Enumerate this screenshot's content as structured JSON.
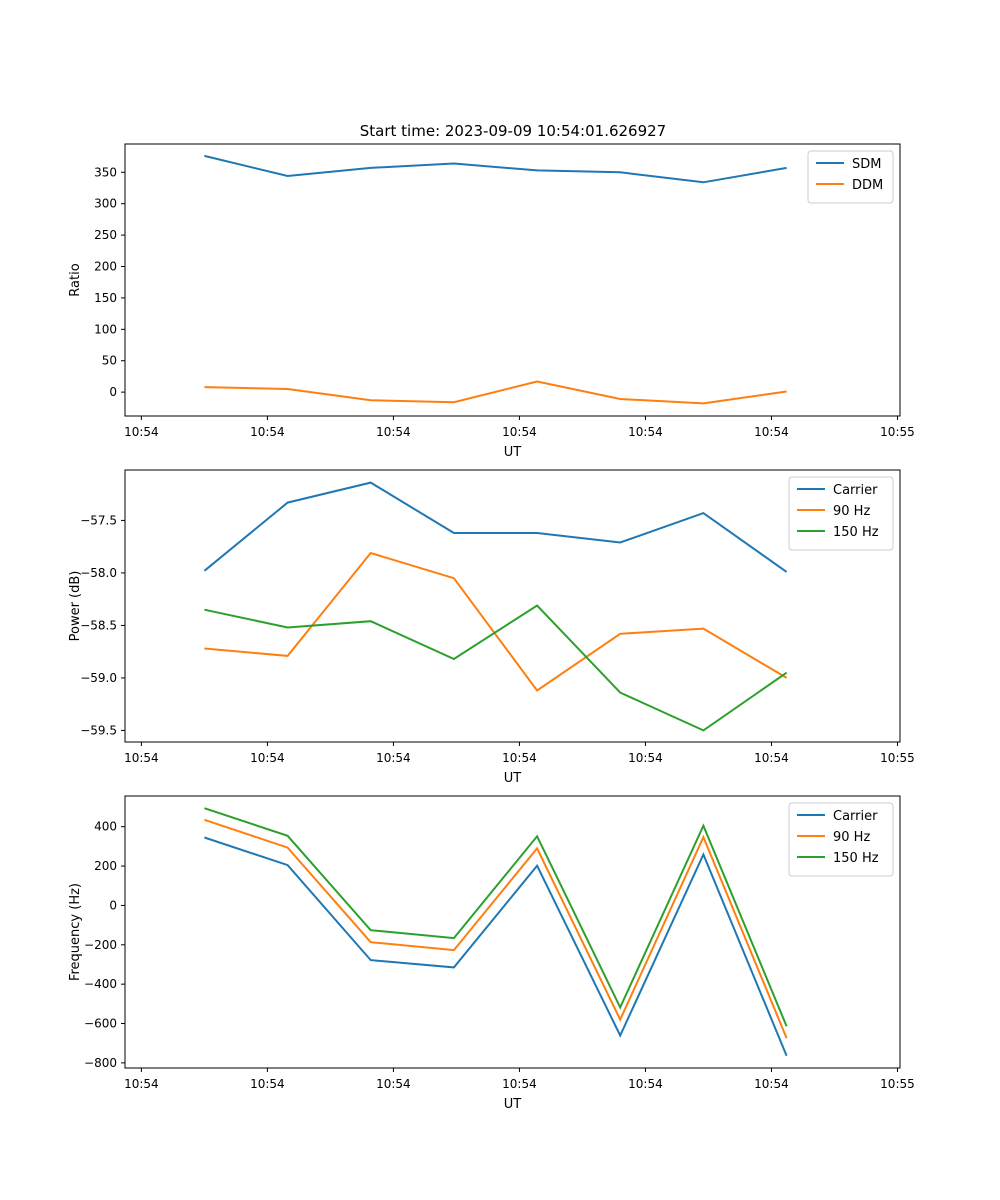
{
  "figure": {
    "title": "Start time: 2023-09-09 10:54:01.626927"
  },
  "chart_data": [
    {
      "type": "line",
      "title": "Start time: 2023-09-09 10:54:01.626927",
      "xlabel": "UT",
      "ylabel": "Ratio",
      "x_ticks": [
        "10:54",
        "10:54",
        "10:54",
        "10:54",
        "10:54",
        "10:54",
        "10:55"
      ],
      "x_tick_positions": [
        0,
        1,
        2,
        3,
        4,
        5,
        6
      ],
      "xlim": [
        -0.13,
        6.02
      ],
      "x": [
        0.5,
        1.16,
        1.82,
        2.48,
        3.14,
        3.8,
        4.46,
        5.12
      ],
      "ylim": [
        -38,
        395
      ],
      "y_ticks": [
        0,
        50,
        100,
        150,
        200,
        250,
        300,
        350
      ],
      "y_tick_labels": [
        "0",
        "50",
        "100",
        "150",
        "200",
        "250",
        "300",
        "350"
      ],
      "legend": "top-right",
      "series": [
        {
          "name": "SDM",
          "color": "#1f77b4",
          "values": [
            376,
            344,
            357,
            364,
            353,
            350,
            334,
            357
          ]
        },
        {
          "name": "DDM",
          "color": "#ff7f0e",
          "values": [
            8,
            5,
            -13,
            -16,
            17,
            -11,
            -18,
            1
          ]
        }
      ]
    },
    {
      "type": "line",
      "title": "",
      "xlabel": "UT",
      "ylabel": "Power (dB)",
      "x_ticks": [
        "10:54",
        "10:54",
        "10:54",
        "10:54",
        "10:54",
        "10:54",
        "10:55"
      ],
      "x_tick_positions": [
        0,
        1,
        2,
        3,
        4,
        5,
        6
      ],
      "xlim": [
        -0.13,
        6.02
      ],
      "x": [
        0.5,
        1.16,
        1.82,
        2.48,
        3.14,
        3.8,
        4.46,
        5.12
      ],
      "ylim": [
        -59.61,
        -57.02
      ],
      "y_ticks": [
        -59.5,
        -59.0,
        -58.5,
        -58.0,
        -57.5
      ],
      "y_tick_labels": [
        "−59.5",
        "−59.0",
        "−58.5",
        "−58.0",
        "−57.5"
      ],
      "legend": "top-right",
      "series": [
        {
          "name": "Carrier",
          "color": "#1f77b4",
          "values": [
            -57.98,
            -57.33,
            -57.14,
            -57.62,
            -57.62,
            -57.71,
            -57.43,
            -57.99
          ]
        },
        {
          "name": "90 Hz",
          "color": "#ff7f0e",
          "values": [
            -58.72,
            -58.79,
            -57.81,
            -58.05,
            -59.12,
            -58.58,
            -58.53,
            -59.0
          ]
        },
        {
          "name": "150 Hz",
          "color": "#2ca02c",
          "values": [
            -58.35,
            -58.52,
            -58.46,
            -58.82,
            -58.31,
            -59.14,
            -59.5,
            -58.95
          ]
        }
      ]
    },
    {
      "type": "line",
      "title": "",
      "xlabel": "UT",
      "ylabel": "Frequency (Hz)",
      "x_ticks": [
        "10:54",
        "10:54",
        "10:54",
        "10:54",
        "10:54",
        "10:54",
        "10:55"
      ],
      "x_tick_positions": [
        0,
        1,
        2,
        3,
        4,
        5,
        6
      ],
      "xlim": [
        -0.13,
        6.02
      ],
      "x": [
        0.5,
        1.16,
        1.82,
        2.48,
        3.14,
        3.8,
        4.46,
        5.12
      ],
      "ylim": [
        -826,
        556
      ],
      "y_ticks": [
        -800,
        -600,
        -400,
        -200,
        0,
        200,
        400
      ],
      "y_tick_labels": [
        "−800",
        "−600",
        "−400",
        "−200",
        "0",
        "200",
        "400"
      ],
      "legend": "top-right",
      "series": [
        {
          "name": "Carrier",
          "color": "#1f77b4",
          "values": [
            345,
            205,
            -278,
            -315,
            202,
            -661,
            259,
            -764
          ]
        },
        {
          "name": "90 Hz",
          "color": "#ff7f0e",
          "values": [
            435,
            294,
            -187,
            -227,
            290,
            -580,
            347,
            -674
          ]
        },
        {
          "name": "150 Hz",
          "color": "#2ca02c",
          "values": [
            494,
            354,
            -126,
            -166,
            351,
            -518,
            405,
            -614
          ]
        }
      ]
    }
  ]
}
